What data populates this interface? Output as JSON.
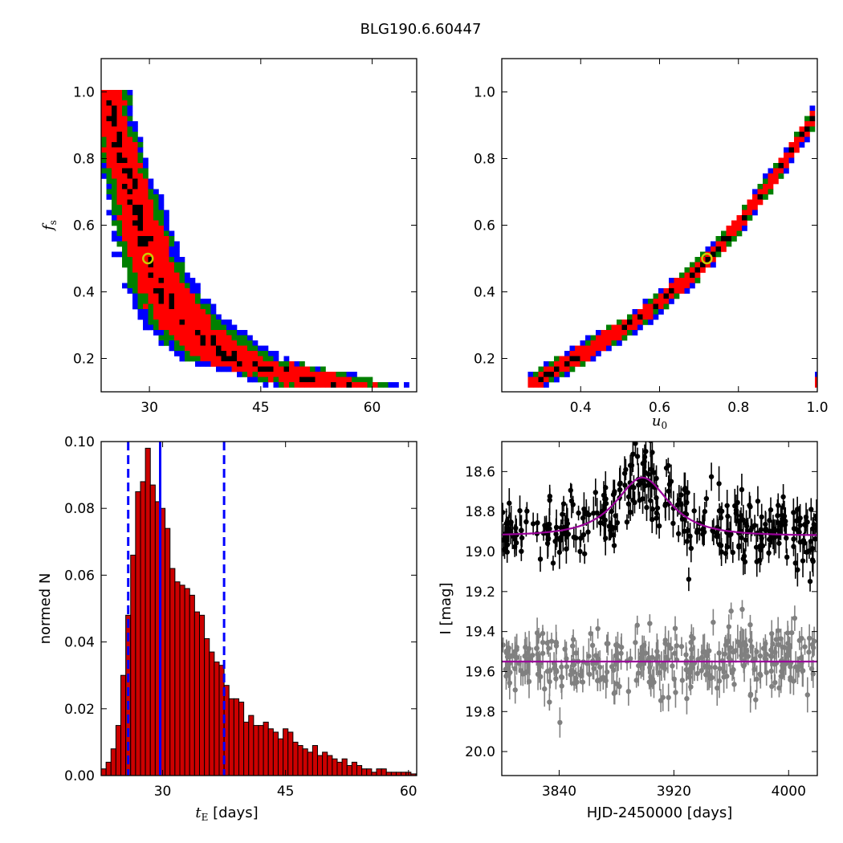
{
  "figure": {
    "title": "BLG190.6.60447"
  },
  "colors": {
    "sigma1": "#000000",
    "sigma2": "#ff0000",
    "sigma3": "#008000",
    "sigma4": "#0000ff",
    "marker": "#cccc00",
    "hist_fill": "#cc0000",
    "hist_line": "#0000ff",
    "model": "#990099",
    "data_main": "#000000",
    "data_resid": "#808080"
  },
  "chart_data": [
    {
      "id": "tE-fs",
      "type": "heatmap",
      "xlabel": "",
      "ylabel": "f",
      "ylabel_sub": "s",
      "xlim": [
        23.5,
        66
      ],
      "ylim": [
        0.1,
        1.1
      ],
      "xticks": [
        30,
        45,
        60
      ],
      "yticks": [
        0.2,
        0.4,
        0.6,
        0.8,
        1.0
      ],
      "xtick_labels": [
        "30",
        "45",
        "60"
      ],
      "ytick_labels": [
        "0.2",
        "0.4",
        "0.6",
        "0.8",
        "1.0"
      ],
      "best_fit": {
        "x": 29.8,
        "y": 0.5
      },
      "band": {
        "shape": "curve",
        "x_from": 1.0,
        "x_to": 0.12,
        "y_from": 1.0,
        "y_to": 0.12,
        "x_at_y": [
          [
            1.0,
            24.5
          ],
          [
            0.9,
            25.2
          ],
          [
            0.8,
            26.3
          ],
          [
            0.7,
            27.6
          ],
          [
            0.6,
            28.8
          ],
          [
            0.5,
            30.0
          ],
          [
            0.4,
            32.0
          ],
          [
            0.3,
            35.0
          ],
          [
            0.2,
            41.0
          ],
          [
            0.12,
            55.0
          ]
        ],
        "width_at_y": [
          [
            1.0,
            2.8
          ],
          [
            0.8,
            3.2
          ],
          [
            0.6,
            3.8
          ],
          [
            0.4,
            4.8
          ],
          [
            0.2,
            7.0
          ],
          [
            0.12,
            9.0
          ]
        ]
      }
    },
    {
      "id": "u0-fs",
      "type": "heatmap",
      "xlabel": "u",
      "xlabel_sub": "0",
      "ylabel": "",
      "xlim": [
        0.2,
        1.0
      ],
      "ylim": [
        0.1,
        1.1
      ],
      "xticks": [
        0.4,
        0.6,
        0.8,
        1.0
      ],
      "yticks": [
        0.2,
        0.4,
        0.6,
        0.8,
        1.0
      ],
      "xtick_labels": [
        "0.4",
        "0.6",
        "0.8",
        "1.0"
      ],
      "ytick_labels": [
        "0.2",
        "0.4",
        "0.6",
        "0.8",
        "1.0"
      ],
      "best_fit": {
        "x": 0.72,
        "y": 0.5
      },
      "band": {
        "shape": "line",
        "points": [
          [
            0.27,
            0.12
          ],
          [
            0.4,
            0.21
          ],
          [
            0.55,
            0.32
          ],
          [
            0.7,
            0.47
          ],
          [
            0.8,
            0.6
          ],
          [
            0.9,
            0.76
          ],
          [
            1.0,
            0.94
          ]
        ],
        "width": 0.035
      }
    },
    {
      "id": "tE-hist",
      "type": "bar",
      "xlabel": "t",
      "xlabel_sub": "E",
      "xlabel_suffix": " [days]",
      "ylabel": "normed N",
      "xlim": [
        22.5,
        61
      ],
      "ylim": [
        0,
        0.1
      ],
      "xticks": [
        30,
        45,
        60
      ],
      "yticks": [
        0,
        0.02,
        0.04,
        0.06,
        0.08,
        0.1
      ],
      "xtick_labels": [
        "30",
        "45",
        "60"
      ],
      "ytick_labels": [
        "0.00",
        "0.02",
        "0.04",
        "0.06",
        "0.08",
        "0.10"
      ],
      "bin_start": 22.5,
      "bin_width": 0.6,
      "values": [
        0.002,
        0.004,
        0.008,
        0.015,
        0.03,
        0.048,
        0.066,
        0.085,
        0.088,
        0.098,
        0.087,
        0.082,
        0.08,
        0.074,
        0.062,
        0.058,
        0.057,
        0.056,
        0.054,
        0.049,
        0.048,
        0.041,
        0.037,
        0.034,
        0.033,
        0.027,
        0.023,
        0.023,
        0.022,
        0.016,
        0.018,
        0.015,
        0.015,
        0.016,
        0.014,
        0.013,
        0.011,
        0.014,
        0.013,
        0.01,
        0.009,
        0.008,
        0.007,
        0.009,
        0.006,
        0.007,
        0.006,
        0.005,
        0.004,
        0.005,
        0.003,
        0.004,
        0.003,
        0.002,
        0.002,
        0.001,
        0.002,
        0.002,
        0.001,
        0.001,
        0.001,
        0.001,
        0.001,
        0.0005,
        0.0005
      ],
      "vlines": [
        {
          "x": 29.7,
          "style": "solid"
        },
        {
          "x": 25.8,
          "style": "dashed"
        },
        {
          "x": 37.5,
          "style": "dashed"
        }
      ]
    },
    {
      "id": "lightcurve",
      "type": "scatter",
      "xlabel": "HJD-2450000 [days]",
      "ylabel": "I [mag]",
      "xlim": [
        3800,
        4020
      ],
      "ylim": [
        20.12,
        18.45
      ],
      "y_inverted": true,
      "xticks": [
        3840,
        3920,
        4000
      ],
      "yticks": [
        18.6,
        18.8,
        19.0,
        19.2,
        19.4,
        19.6,
        19.8,
        20.0
      ],
      "xtick_labels": [
        "3840",
        "3920",
        "4000"
      ],
      "ytick_labels": [
        "18.6",
        "18.8",
        "19.0",
        "19.2",
        "19.4",
        "19.6",
        "19.8",
        "20.0"
      ],
      "model": {
        "baseline": 18.92,
        "peak": 18.63,
        "t0": 3898,
        "tE": 29.7,
        "u0": 0.72
      },
      "residual_baseline": 19.55,
      "series": [
        {
          "name": "",
          "role": "data",
          "mean_mag": 18.92,
          "scatter": 0.085,
          "err": 0.06,
          "n": 330
        },
        {
          "name": "",
          "role": "residual",
          "mean_mag": 19.55,
          "scatter": 0.085,
          "err": 0.06,
          "n": 330
        }
      ]
    }
  ]
}
